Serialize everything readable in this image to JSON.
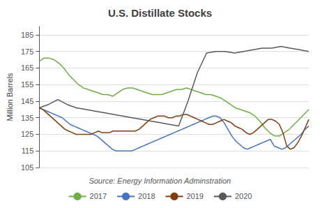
{
  "chart_data": {
    "type": "line",
    "title": "U.S. Distillate Stocks",
    "ylabel": "Million Barrels",
    "annotations": [
      "Source: Energy Information Adminstration"
    ],
    "series": [
      {
        "name": "2017",
        "color": "#70ad47",
        "values": [
          169,
          171,
          171,
          170,
          168,
          165,
          161,
          158,
          155,
          153,
          152,
          151,
          150,
          149,
          149,
          148,
          150,
          152,
          153,
          153,
          152,
          151,
          150,
          149,
          149,
          149,
          150,
          151,
          152,
          152,
          153,
          152,
          151,
          150,
          149,
          149,
          148,
          147,
          145,
          143,
          141,
          140,
          139,
          138,
          136,
          133,
          129,
          126,
          124,
          124,
          126,
          128,
          131,
          134,
          137,
          140
        ]
      },
      {
        "name": "2018",
        "color": "#4472c4",
        "values": [
          141,
          140,
          139,
          138,
          137,
          136,
          135,
          133,
          131,
          130,
          129,
          128,
          127,
          126,
          125,
          124,
          122,
          120,
          118,
          116,
          115,
          115,
          115,
          115,
          115,
          116,
          117,
          118,
          119,
          120,
          121,
          122,
          123,
          124,
          125,
          126,
          127,
          128,
          129,
          130,
          131,
          132,
          133,
          134,
          135,
          136,
          136,
          135,
          132,
          128,
          124,
          121,
          119,
          117,
          116,
          117,
          118,
          119,
          120,
          121,
          122,
          118,
          117,
          116,
          117,
          119,
          121,
          123,
          125,
          128,
          130
        ]
      },
      {
        "name": "2019",
        "color": "#843c0c",
        "values": [
          141,
          140,
          138,
          136,
          134,
          132,
          130,
          128,
          127,
          126,
          125,
          125,
          125,
          125,
          125,
          126,
          127,
          126,
          126,
          126,
          127,
          127,
          127,
          127,
          127,
          127,
          127,
          128,
          130,
          132,
          134,
          135,
          136,
          136,
          136,
          135,
          135,
          136,
          136,
          137,
          137,
          136,
          135,
          134,
          133,
          132,
          131,
          131,
          132,
          133,
          134,
          133,
          132,
          130,
          129,
          128,
          126,
          125,
          126,
          128,
          130,
          132,
          134,
          134,
          133,
          131,
          126,
          118,
          116,
          117,
          120,
          124,
          129,
          134
        ]
      },
      {
        "name": "2020",
        "color": "#595959",
        "values": [
          141,
          143,
          146,
          143,
          141,
          140,
          139,
          138,
          137,
          136,
          135,
          134,
          133,
          132,
          131,
          130,
          145,
          162,
          174,
          175,
          175,
          174,
          175,
          176,
          177,
          177,
          178,
          177,
          176,
          175
        ]
      }
    ],
    "ylim": [
      105,
      190
    ],
    "yticks": [
      105,
      115,
      125,
      135,
      145,
      155,
      165,
      175,
      185
    ],
    "grid": true,
    "tick_labels": "y",
    "legend": "bottom"
  }
}
